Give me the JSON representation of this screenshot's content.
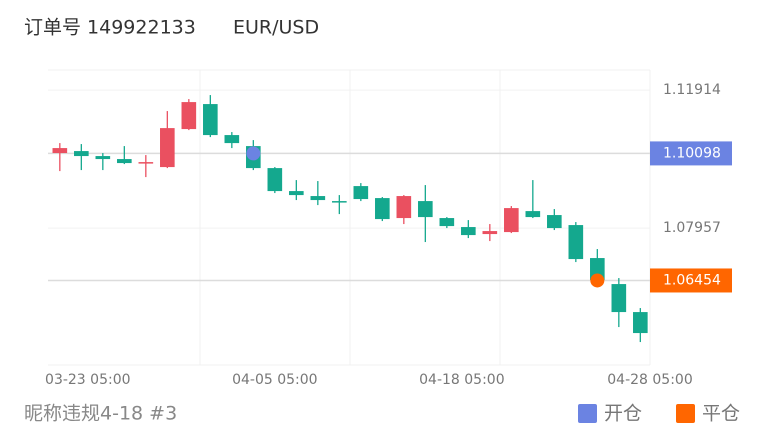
{
  "chart_data": {
    "type": "candlestick",
    "order": "订单号 149922133",
    "symbol": "EUR/USD",
    "footer": "昵称违规4-18 #3",
    "up_color": "#ea5060",
    "down_color": "#14a88e",
    "open": [
      1.10108,
      1.10165,
      1.10022,
      1.09936,
      1.09821,
      1.09706,
      1.10796,
      1.11513,
      1.10624,
      1.10308,
      1.09677,
      1.09018,
      1.08875,
      1.08731,
      1.09161,
      1.08817,
      1.08244,
      1.08731,
      1.08244,
      1.07986,
      1.07785,
      1.07842,
      1.08444,
      1.0833,
      1.08043,
      1.07097,
      1.06351,
      1.05548
    ],
    "high": [
      1.10394,
      1.10366,
      1.10108,
      1.10308,
      1.1005,
      1.11312,
      1.11656,
      1.11771,
      1.1071,
      1.1048,
      1.09706,
      1.09333,
      1.09305,
      1.08903,
      1.09247,
      1.08846,
      1.08903,
      1.0919,
      1.08272,
      1.08186,
      1.08072,
      1.08588,
      1.09333,
      1.08502,
      1.08129,
      1.07355,
      1.06523,
      1.05663
    ],
    "low": [
      1.09591,
      1.0962,
      1.0962,
      1.09792,
      1.09419,
      1.09677,
      1.10767,
      1.10566,
      1.10251,
      1.0962,
      1.08961,
      1.0876,
      1.08616,
      1.08358,
      1.08731,
      1.08158,
      1.08072,
      1.07556,
      1.07957,
      1.0767,
      1.07584,
      1.07814,
      1.08244,
      1.079,
      1.06982,
      1.06409,
      1.05118,
      1.04688
    ],
    "close": [
      1.10251,
      1.10022,
      1.09936,
      1.09821,
      1.09849,
      1.10824,
      1.1157,
      1.10624,
      1.10394,
      1.09677,
      1.09018,
      1.08903,
      1.0876,
      1.08703,
      1.08789,
      1.08215,
      1.08875,
      1.08272,
      1.08014,
      1.07756,
      1.07871,
      1.0853,
      1.08272,
      1.07957,
      1.07068,
      1.06466,
      1.05548,
      1.04946
    ],
    "markers": [
      {
        "name": "开仓",
        "color": "#6b83e2",
        "x": 9,
        "value": 1.10098
      },
      {
        "name": "平仓",
        "color": "#ff6600",
        "x": 25,
        "value": 1.06454
      }
    ],
    "xlim": [
      -0.55,
      27.45
    ],
    "xticks": [
      {
        "value": 1.3,
        "label": "03-23 05:00"
      },
      {
        "value": 10,
        "label": "04-05 05:00"
      },
      {
        "value": 18.7,
        "label": "04-18 05:00"
      },
      {
        "value": 27.45,
        "label": "04-28 05:00"
      }
    ],
    "ylim": [
      1.0403,
      1.1249
    ],
    "yticks": [
      1.11914,
      1.07957
    ]
  }
}
